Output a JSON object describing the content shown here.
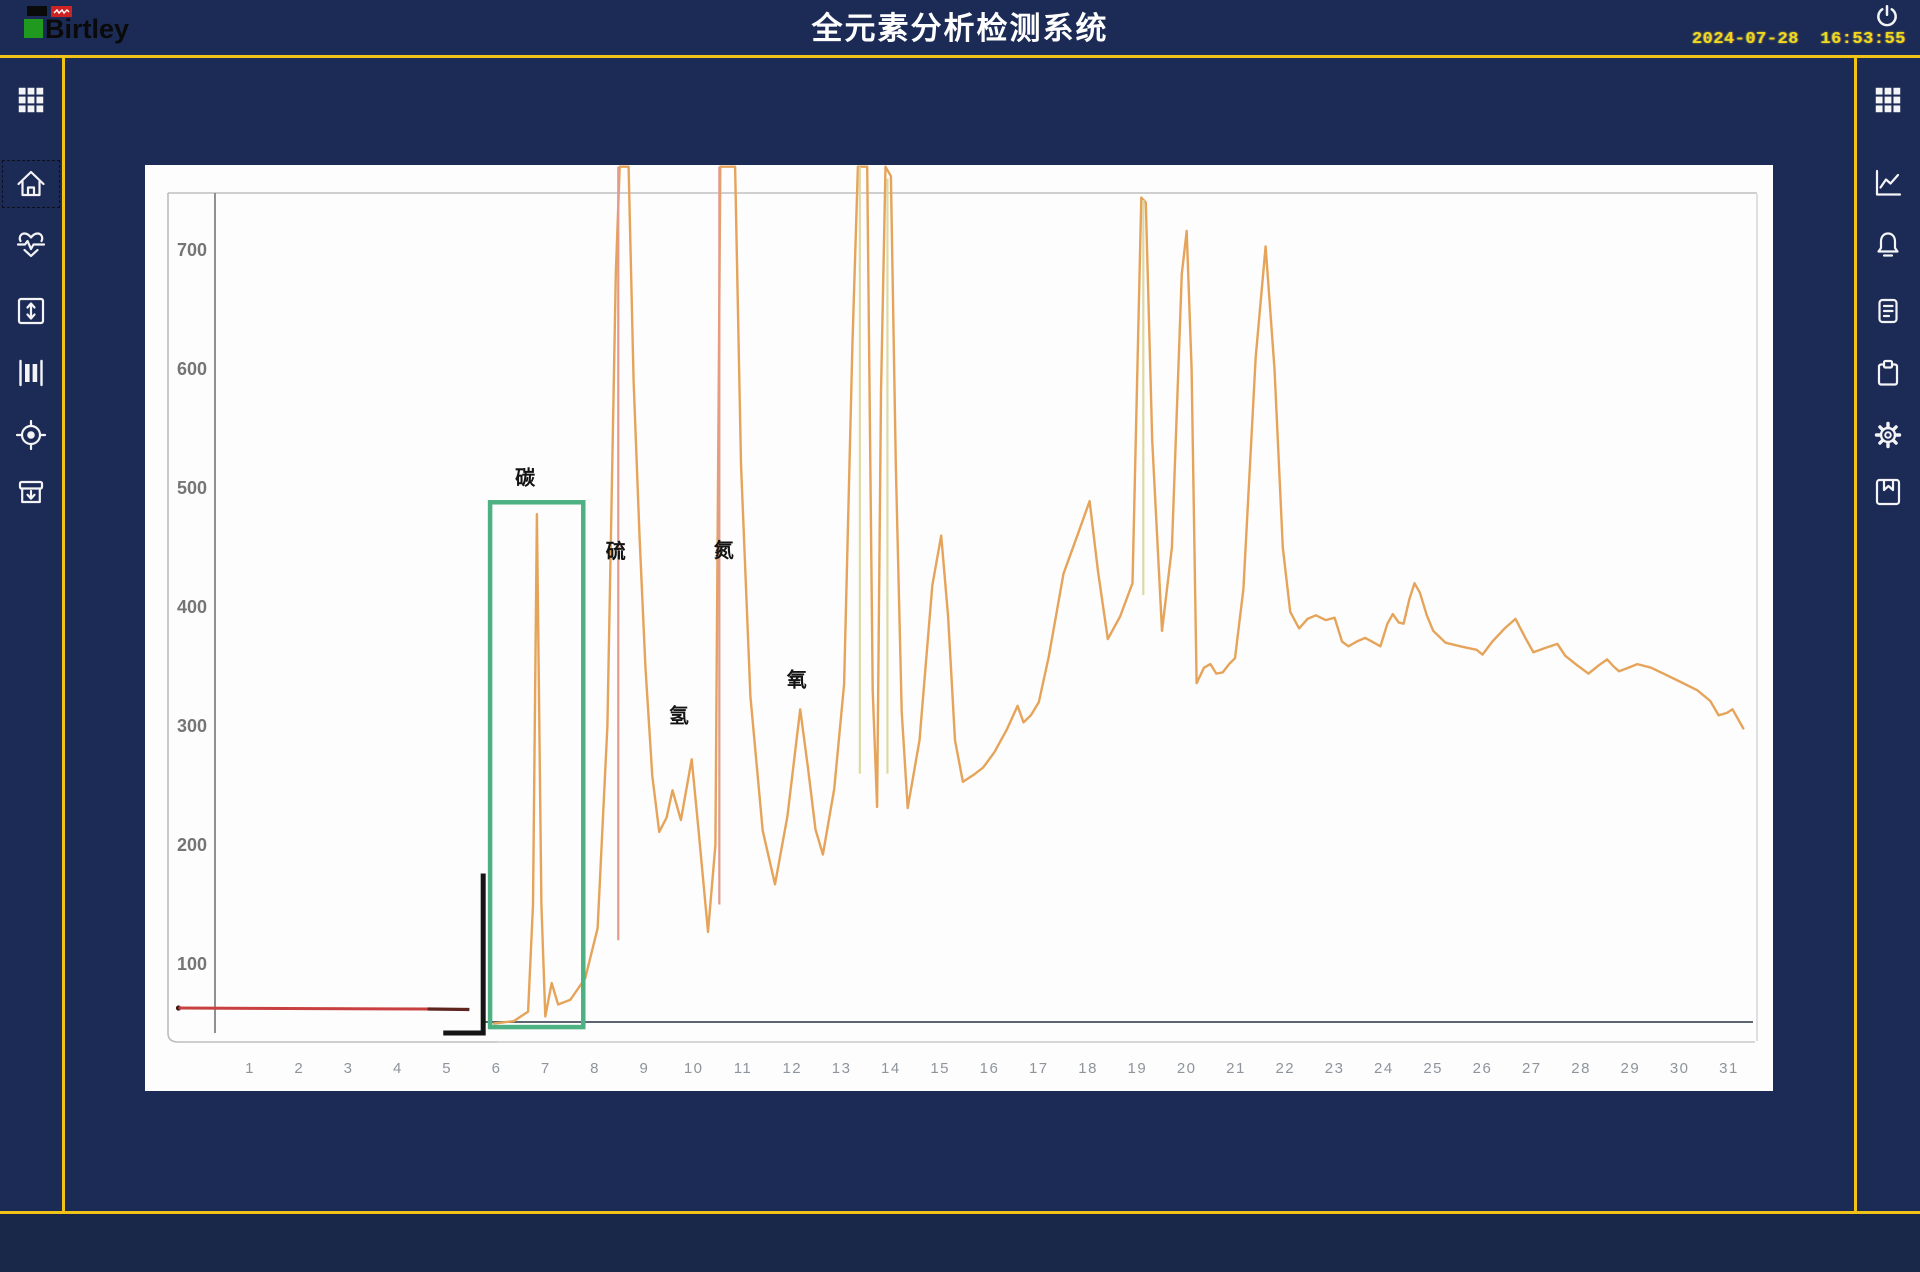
{
  "header": {
    "logo_text": "Birtley",
    "title": "全元素分析检测系统",
    "datetime": "2024-07-28  16:53:55"
  },
  "left_sidebar": {
    "items": [
      {
        "name": "apps-grid"
      },
      {
        "name": "home",
        "selected": true
      },
      {
        "name": "health-monitor"
      },
      {
        "name": "vertical-range"
      },
      {
        "name": "columns-gauge"
      },
      {
        "name": "target-calibrate"
      },
      {
        "name": "archive-box"
      }
    ]
  },
  "right_sidebar": {
    "items": [
      {
        "name": "apps-grid"
      },
      {
        "name": "trend-chart"
      },
      {
        "name": "alarms"
      },
      {
        "name": "report-document"
      },
      {
        "name": "clipboard-tasks"
      },
      {
        "name": "settings"
      },
      {
        "name": "records-book"
      }
    ]
  },
  "chart_data": {
    "type": "line",
    "title": "",
    "xlabel": "",
    "ylabel": "",
    "xlim": [
      0,
      31.6
    ],
    "ylim": [
      0,
      740
    ],
    "grid": false,
    "x_ticks": [
      1,
      2,
      3,
      4,
      5,
      6,
      7,
      8,
      9,
      10,
      11,
      12,
      13,
      14,
      15,
      16,
      17,
      18,
      19,
      20,
      21,
      22,
      23,
      24,
      25,
      26,
      27,
      28,
      29,
      30,
      31
    ],
    "y_ticks": [
      700,
      600,
      500,
      400,
      300,
      200,
      100
    ],
    "trace_color": "#e5a45a",
    "peak_labels": [
      {
        "label": "碳",
        "t": 6.58,
        "v": 503
      },
      {
        "label": "硫",
        "t": 8.42,
        "v": 441
      },
      {
        "label": "氢",
        "t": 9.7,
        "v": 303
      },
      {
        "label": "氮",
        "t": 10.61,
        "v": 442
      },
      {
        "label": "氧",
        "t": 12.09,
        "v": 333
      }
    ],
    "series": [
      {
        "name": "element-analysis-trace",
        "points": [
          [
            5.95,
            50
          ],
          [
            6.35,
            52
          ],
          [
            6.64,
            60
          ],
          [
            6.74,
            150
          ],
          [
            6.82,
            478
          ],
          [
            6.91,
            150
          ],
          [
            6.99,
            56
          ],
          [
            7.12,
            84
          ],
          [
            7.25,
            66
          ],
          [
            7.5,
            70
          ],
          [
            7.8,
            88
          ],
          [
            8.05,
            130
          ],
          [
            8.25,
            300
          ],
          [
            8.42,
            680
          ],
          [
            8.5,
            770
          ],
          [
            8.68,
            770
          ],
          [
            8.78,
            590
          ],
          [
            8.9,
            460
          ],
          [
            9.02,
            350
          ],
          [
            9.16,
            258
          ],
          [
            9.3,
            211
          ],
          [
            9.45,
            223
          ],
          [
            9.57,
            246
          ],
          [
            9.74,
            221
          ],
          [
            9.96,
            272
          ],
          [
            10.1,
            212
          ],
          [
            10.29,
            127
          ],
          [
            10.44,
            200
          ],
          [
            10.54,
            770
          ],
          [
            10.84,
            770
          ],
          [
            10.96,
            520
          ],
          [
            11.15,
            325
          ],
          [
            11.4,
            212
          ],
          [
            11.65,
            167
          ],
          [
            11.9,
            224
          ],
          [
            12.16,
            314
          ],
          [
            12.32,
            264
          ],
          [
            12.47,
            213
          ],
          [
            12.62,
            192
          ],
          [
            12.85,
            247
          ],
          [
            13.05,
            335
          ],
          [
            13.22,
            620
          ],
          [
            13.33,
            770
          ],
          [
            13.52,
            770
          ],
          [
            13.63,
            330
          ],
          [
            13.72,
            232
          ],
          [
            13.8,
            580
          ],
          [
            13.89,
            770
          ],
          [
            14.0,
            762
          ],
          [
            14.1,
            520
          ],
          [
            14.22,
            312
          ],
          [
            14.34,
            231
          ],
          [
            14.58,
            288
          ],
          [
            14.84,
            418
          ],
          [
            15.02,
            460
          ],
          [
            15.16,
            392
          ],
          [
            15.3,
            288
          ],
          [
            15.46,
            253
          ],
          [
            15.68,
            259
          ],
          [
            15.87,
            265
          ],
          [
            16.1,
            278
          ],
          [
            16.35,
            297
          ],
          [
            16.57,
            317
          ],
          [
            16.69,
            303
          ],
          [
            16.84,
            309
          ],
          [
            17.0,
            320
          ],
          [
            17.2,
            358
          ],
          [
            17.5,
            428
          ],
          [
            17.8,
            462
          ],
          [
            18.03,
            489
          ],
          [
            18.2,
            430
          ],
          [
            18.4,
            373
          ],
          [
            18.65,
            392
          ],
          [
            18.9,
            420
          ],
          [
            19.08,
            744
          ],
          [
            19.17,
            740
          ],
          [
            19.3,
            540
          ],
          [
            19.5,
            380
          ],
          [
            19.7,
            450
          ],
          [
            19.9,
            680
          ],
          [
            20.0,
            716
          ],
          [
            20.1,
            600
          ],
          [
            20.2,
            336
          ],
          [
            20.35,
            349
          ],
          [
            20.48,
            352
          ],
          [
            20.6,
            344
          ],
          [
            20.73,
            345
          ],
          [
            20.86,
            352
          ],
          [
            20.98,
            357
          ],
          [
            21.15,
            415
          ],
          [
            21.4,
            610
          ],
          [
            21.6,
            703
          ],
          [
            21.78,
            600
          ],
          [
            21.95,
            450
          ],
          [
            22.1,
            396
          ],
          [
            22.28,
            382
          ],
          [
            22.45,
            390
          ],
          [
            22.62,
            393
          ],
          [
            22.82,
            389
          ],
          [
            23.0,
            391
          ],
          [
            23.15,
            371
          ],
          [
            23.28,
            367
          ],
          [
            23.45,
            371
          ],
          [
            23.62,
            374
          ],
          [
            23.8,
            370
          ],
          [
            23.93,
            367
          ],
          [
            24.07,
            386
          ],
          [
            24.18,
            394
          ],
          [
            24.3,
            387
          ],
          [
            24.4,
            386
          ],
          [
            24.52,
            407
          ],
          [
            24.62,
            420
          ],
          [
            24.73,
            412
          ],
          [
            24.87,
            393
          ],
          [
            25.0,
            380
          ],
          [
            25.25,
            370
          ],
          [
            25.55,
            367
          ],
          [
            25.88,
            364
          ],
          [
            26.0,
            360
          ],
          [
            26.2,
            371
          ],
          [
            26.45,
            382
          ],
          [
            26.67,
            390
          ],
          [
            26.87,
            374
          ],
          [
            27.03,
            362
          ],
          [
            27.3,
            366
          ],
          [
            27.52,
            369
          ],
          [
            27.68,
            359
          ],
          [
            27.92,
            351
          ],
          [
            28.15,
            344
          ],
          [
            28.36,
            351
          ],
          [
            28.53,
            356
          ],
          [
            28.66,
            350
          ],
          [
            28.77,
            346
          ],
          [
            28.96,
            349
          ],
          [
            29.14,
            352
          ],
          [
            29.42,
            349
          ],
          [
            29.67,
            344
          ],
          [
            30.02,
            337
          ],
          [
            30.36,
            330
          ],
          [
            30.62,
            321
          ],
          [
            30.79,
            309
          ],
          [
            30.96,
            311
          ],
          [
            31.07,
            314
          ],
          [
            31.29,
            298
          ]
        ]
      }
    ],
    "annotations": {
      "green_box": {
        "t1": 5.87,
        "t2": 7.76,
        "v_top": 488,
        "v_bottom": 47,
        "color": "#4db183"
      },
      "bracket": {
        "t_foot": 4.92,
        "t_corner": 5.73,
        "v_bottom": 42,
        "v_top": 176,
        "color": "#151515"
      },
      "red_baseline": {
        "t_start": -0.45,
        "t_mid": 4.6,
        "t_end": 5.45,
        "v": 63,
        "color": "#c84040",
        "tail_color": "#5f2620"
      },
      "accent_lines": [
        {
          "t": 8.47,
          "v1": 120,
          "v2": 770,
          "color": "#e59a8e"
        },
        {
          "t": 10.52,
          "v1": 150,
          "v2": 770,
          "color": "#e59a8e"
        },
        {
          "t": 13.37,
          "v1": 260,
          "v2": 770,
          "color": "#ddd9a6"
        },
        {
          "t": 13.93,
          "v1": 260,
          "v2": 760,
          "color": "#ddd9a6"
        },
        {
          "t": 19.12,
          "v1": 410,
          "v2": 742,
          "color": "#ddd9a6"
        }
      ]
    }
  },
  "colors": {
    "background": "#1c2b56",
    "bottom_strip": "#192849",
    "panel": "#fdfdfd",
    "accent_yellow": "#f2c317",
    "datetime_yellow": "#f0d91c",
    "icon_white": "#f4f4f6",
    "logo_green": "#1f9a1f",
    "logo_red": "#cc2222",
    "logo_black": "#0a0a0a",
    "trace_orange": "#e5a45a",
    "green_box": "#4db183"
  }
}
